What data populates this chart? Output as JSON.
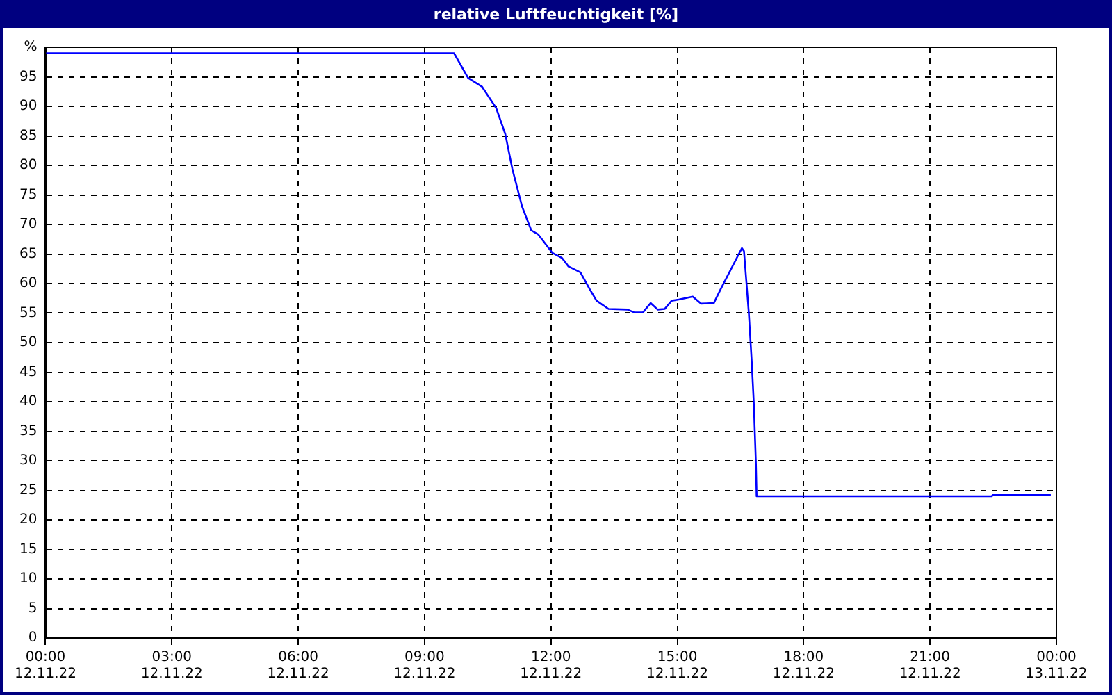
{
  "chart_data": {
    "type": "line",
    "title": "relative Luftfeuchtigkeit [%]",
    "xlim": [
      "--11-12T00:00",
      "--11-13T00:00"
    ],
    "xticks": [
      {
        "value": "--11-12T00:00",
        "label": "00:00 12.11.22"
      },
      {
        "value": "--11-12T03:00",
        "label": "03:00 12.11.22"
      },
      {
        "value": "--11-12T06:00",
        "label": "06:00 12.11.22"
      },
      {
        "value": "--11-12T09:00",
        "label": "09:00 12.11.22"
      },
      {
        "value": "--11-12T12:00",
        "label": "12:00 12.11.22"
      },
      {
        "value": "--11-12T15:00",
        "label": "15:00 12.11.22"
      },
      {
        "value": "--11-12T18:00",
        "label": "18:00 12.11.22"
      },
      {
        "value": "--11-12T21:00",
        "label": "21:00 12.11.22"
      },
      {
        "value": "--11-13T00:00",
        "label": "00:00 13.11.22"
      }
    ],
    "ylim": [
      0,
      100
    ],
    "yticks": [
      0,
      5,
      10,
      15,
      20,
      25,
      30,
      35,
      40,
      45,
      50,
      55,
      60,
      65,
      70,
      75,
      80,
      85,
      90,
      95,
      {
        "value": 100,
        "label": "%"
      }
    ],
    "grid": true,
    "legend": false,
    "marker": "none",
    "line_style": "solid",
    "series": [
      {
        "color": "#0000ff",
        "x": [
          "--11-12T00:00",
          "--11-12T09:42",
          "--11-12T10:02",
          "--11-12T10:22",
          "--11-12T10:42",
          "--11-12T10:55",
          "--11-12T11:05",
          "--11-12T11:19",
          "--11-12T11:32",
          "--11-12T11:42",
          "--11-12T12:02",
          "--11-12T12:16",
          "--11-12T12:25",
          "--11-12T12:42",
          "--11-12T12:55",
          "--11-12T13:05",
          "--11-12T13:22",
          "--11-12T13:49",
          "--11-12T13:59",
          "--11-12T14:11",
          "--11-12T14:22",
          "--11-12T14:32",
          "--11-12T14:42",
          "--11-12T14:52",
          "--11-12T15:02",
          "--11-12T15:22",
          "--11-12T15:34",
          "--11-12T15:52",
          "--11-12T16:02",
          "--11-12T16:32",
          "--11-12T16:35",
          "--11-12T16:42",
          "--11-12T16:46",
          "--11-12T16:49",
          "--11-12T16:52",
          "--11-12T16:53",
          "--11-12T22:28",
          "--11-12T22:29",
          "--11-12T23:52"
        ],
        "values": [
          99,
          99,
          94.8,
          93.3,
          89.7,
          85.3,
          79.4,
          73,
          69,
          68.3,
          65.2,
          64.3,
          62.9,
          61.9,
          59.1,
          57.1,
          55.7,
          55.6,
          55.1,
          55.1,
          56.7,
          55.6,
          55.7,
          57.1,
          57.3,
          57.8,
          56.6,
          56.7,
          59.1,
          66,
          65.5,
          54.8,
          46.8,
          39.7,
          29.4,
          24,
          24,
          24.2,
          24.2
        ]
      }
    ]
  }
}
